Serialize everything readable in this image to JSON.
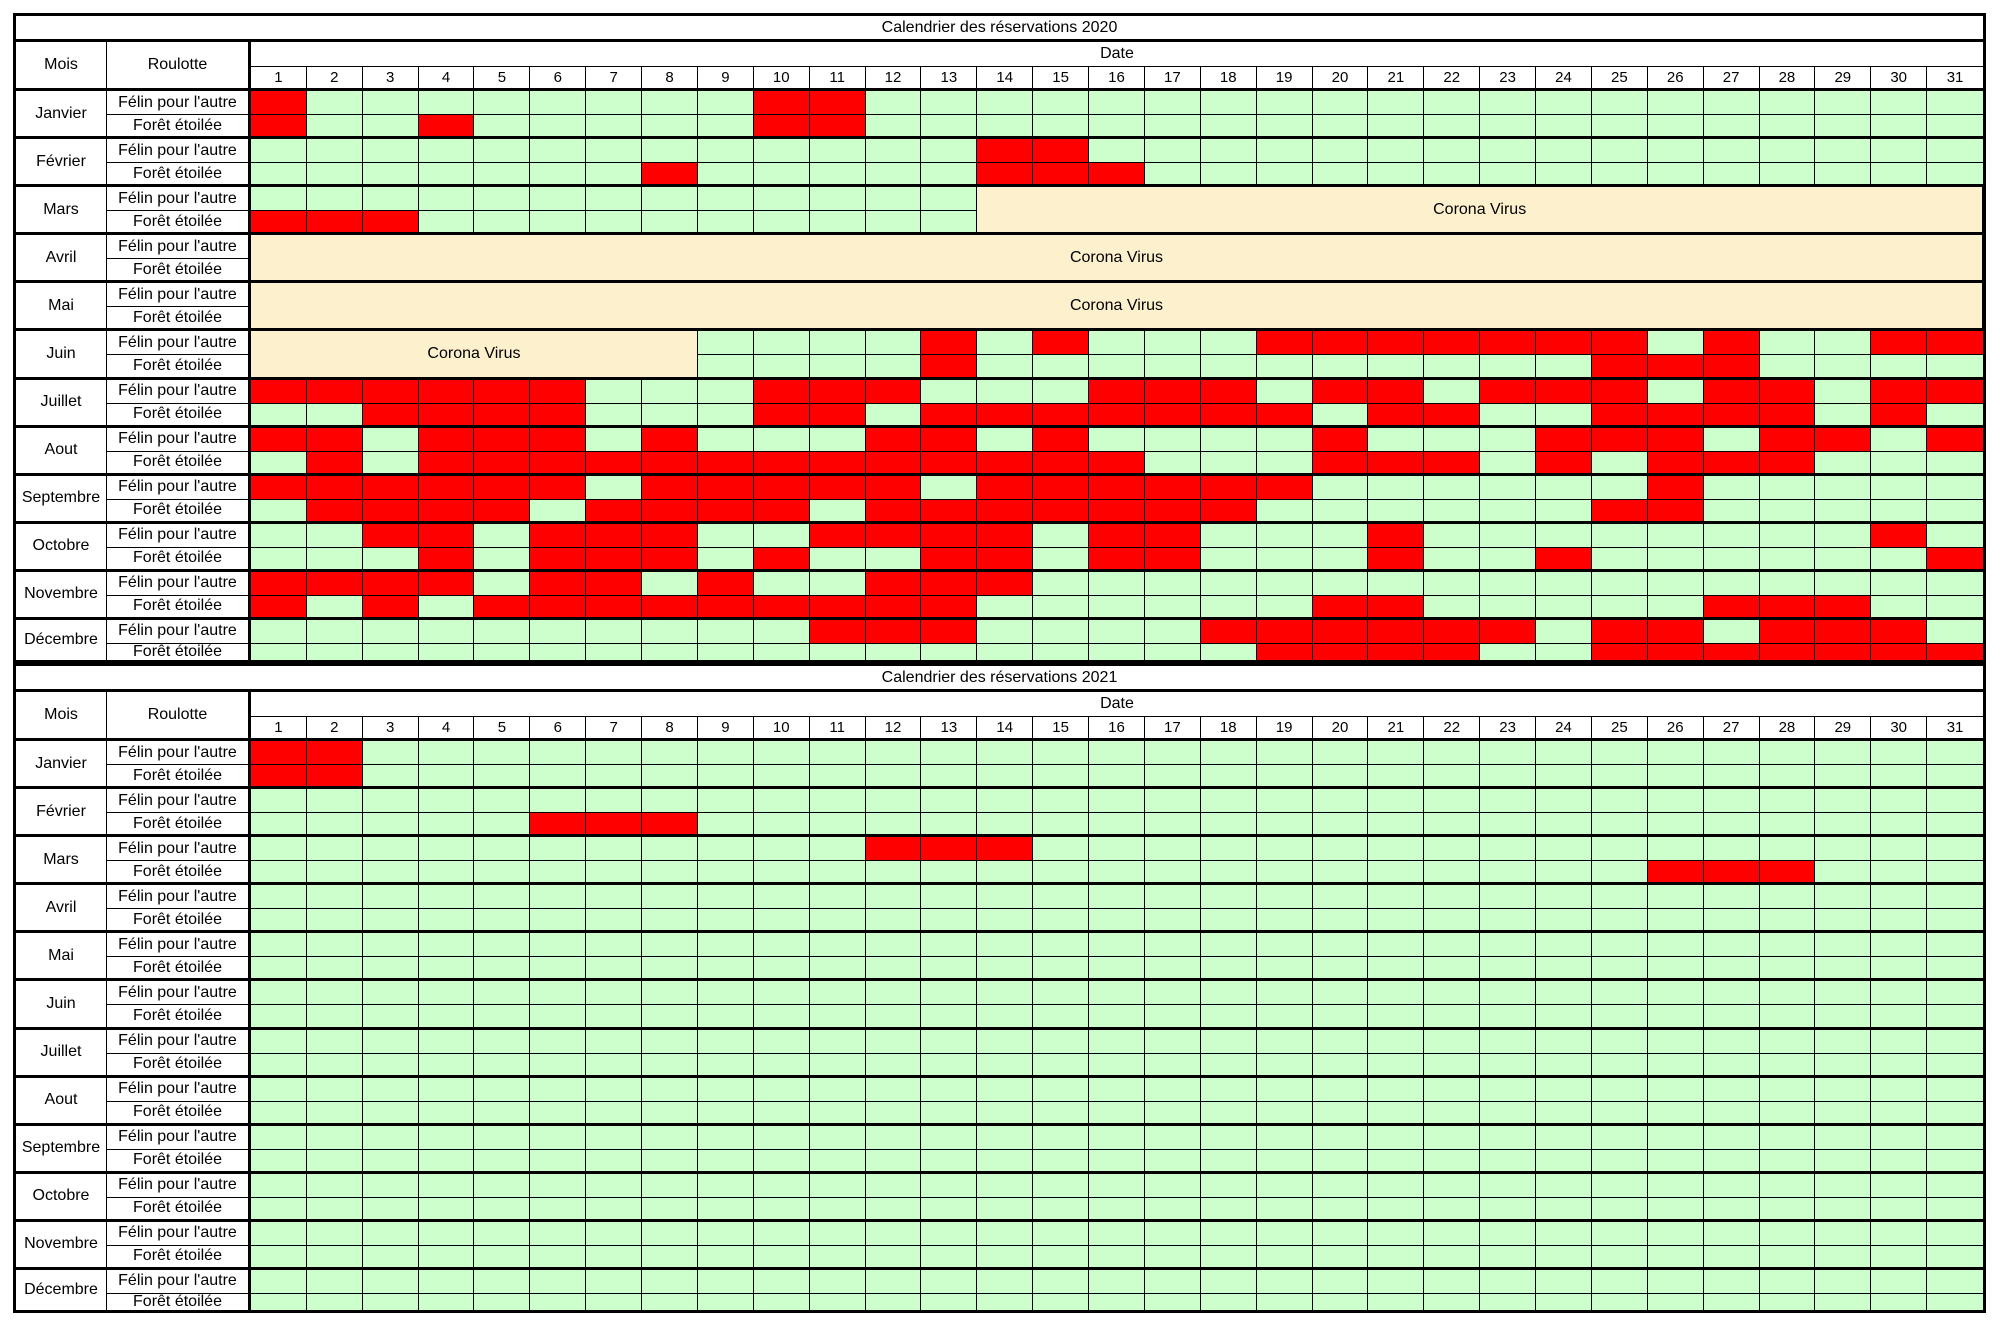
{
  "calendars": [
    {
      "title": "Calendrier des réservations 2020",
      "headers": {
        "mois": "Mois",
        "roulotte": "Roulotte",
        "date": "Date"
      },
      "days": [
        "1",
        "2",
        "3",
        "4",
        "5",
        "6",
        "7",
        "8",
        "9",
        "10",
        "11",
        "12",
        "13",
        "14",
        "15",
        "16",
        "17",
        "18",
        "19",
        "20",
        "21",
        "22",
        "23",
        "24",
        "25",
        "26",
        "27",
        "28",
        "29",
        "30",
        "31"
      ],
      "months": [
        "Janvier",
        "Février",
        "Mars",
        "Avril",
        "Mai",
        "Juin",
        "Juillet",
        "Aout",
        "Septembre",
        "Octobre",
        "Novembre",
        "Décembre"
      ],
      "roulottes": [
        "Félin pour l'autre",
        "Forêt étoilée"
      ],
      "closures": [
        {
          "month": 3,
          "rows": [
            1,
            2
          ],
          "from": 14,
          "to": 31,
          "label": "Corona Virus"
        },
        {
          "month": 4,
          "rows": [
            1,
            2
          ],
          "from": 1,
          "to": 31,
          "label": "Corona Virus"
        },
        {
          "month": 5,
          "rows": [
            1,
            2
          ],
          "from": 1,
          "to": 31,
          "label": "Corona Virus"
        },
        {
          "month": 6,
          "rows": [
            1,
            2
          ],
          "from": 1,
          "to": 8,
          "label": "Corona Virus"
        }
      ],
      "bookings": [
        {
          "month": 1,
          "row": 1,
          "from": 1,
          "to": 1
        },
        {
          "month": 1,
          "row": 1,
          "from": 10,
          "to": 11
        },
        {
          "month": 1,
          "row": 2,
          "from": 1,
          "to": 1
        },
        {
          "month": 1,
          "row": 2,
          "from": 4,
          "to": 4
        },
        {
          "month": 1,
          "row": 2,
          "from": 10,
          "to": 11
        },
        {
          "month": 2,
          "row": 1,
          "from": 14,
          "to": 15
        },
        {
          "month": 2,
          "row": 2,
          "from": 8,
          "to": 8
        },
        {
          "month": 2,
          "row": 2,
          "from": 14,
          "to": 16
        },
        {
          "month": 3,
          "row": 2,
          "from": 1,
          "to": 3
        },
        {
          "month": 6,
          "row": 1,
          "from": 13,
          "to": 13
        },
        {
          "month": 6,
          "row": 1,
          "from": 15,
          "to": 15
        },
        {
          "month": 6,
          "row": 1,
          "from": 19,
          "to": 25
        },
        {
          "month": 6,
          "row": 1,
          "from": 27,
          "to": 27
        },
        {
          "month": 6,
          "row": 1,
          "from": 30,
          "to": 31
        },
        {
          "month": 6,
          "row": 2,
          "from": 13,
          "to": 13
        },
        {
          "month": 6,
          "row": 2,
          "from": 25,
          "to": 27
        },
        {
          "month": 7,
          "row": 1,
          "from": 1,
          "to": 6
        },
        {
          "month": 7,
          "row": 1,
          "from": 10,
          "to": 12
        },
        {
          "month": 7,
          "row": 1,
          "from": 16,
          "to": 18
        },
        {
          "month": 7,
          "row": 1,
          "from": 20,
          "to": 21
        },
        {
          "month": 7,
          "row": 1,
          "from": 23,
          "to": 25
        },
        {
          "month": 7,
          "row": 1,
          "from": 27,
          "to": 28
        },
        {
          "month": 7,
          "row": 1,
          "from": 30,
          "to": 31
        },
        {
          "month": 7,
          "row": 2,
          "from": 3,
          "to": 6
        },
        {
          "month": 7,
          "row": 2,
          "from": 10,
          "to": 11
        },
        {
          "month": 7,
          "row": 2,
          "from": 13,
          "to": 19
        },
        {
          "month": 7,
          "row": 2,
          "from": 21,
          "to": 22
        },
        {
          "month": 7,
          "row": 2,
          "from": 25,
          "to": 28
        },
        {
          "month": 7,
          "row": 2,
          "from": 30,
          "to": 30
        },
        {
          "month": 8,
          "row": 1,
          "from": 1,
          "to": 2
        },
        {
          "month": 8,
          "row": 1,
          "from": 4,
          "to": 6
        },
        {
          "month": 8,
          "row": 1,
          "from": 8,
          "to": 8
        },
        {
          "month": 8,
          "row": 1,
          "from": 12,
          "to": 13
        },
        {
          "month": 8,
          "row": 1,
          "from": 15,
          "to": 15
        },
        {
          "month": 8,
          "row": 1,
          "from": 20,
          "to": 20
        },
        {
          "month": 8,
          "row": 1,
          "from": 24,
          "to": 26
        },
        {
          "month": 8,
          "row": 1,
          "from": 28,
          "to": 29
        },
        {
          "month": 8,
          "row": 1,
          "from": 31,
          "to": 31
        },
        {
          "month": 8,
          "row": 2,
          "from": 2,
          "to": 2
        },
        {
          "month": 8,
          "row": 2,
          "from": 4,
          "to": 16
        },
        {
          "month": 8,
          "row": 2,
          "from": 20,
          "to": 22
        },
        {
          "month": 8,
          "row": 2,
          "from": 24,
          "to": 24
        },
        {
          "month": 8,
          "row": 2,
          "from": 26,
          "to": 28
        },
        {
          "month": 9,
          "row": 1,
          "from": 1,
          "to": 6
        },
        {
          "month": 9,
          "row": 1,
          "from": 8,
          "to": 12
        },
        {
          "month": 9,
          "row": 1,
          "from": 14,
          "to": 19
        },
        {
          "month": 9,
          "row": 1,
          "from": 26,
          "to": 26
        },
        {
          "month": 9,
          "row": 2,
          "from": 2,
          "to": 5
        },
        {
          "month": 9,
          "row": 2,
          "from": 7,
          "to": 10
        },
        {
          "month": 9,
          "row": 2,
          "from": 12,
          "to": 18
        },
        {
          "month": 9,
          "row": 2,
          "from": 25,
          "to": 26
        },
        {
          "month": 10,
          "row": 1,
          "from": 3,
          "to": 4
        },
        {
          "month": 10,
          "row": 1,
          "from": 6,
          "to": 8
        },
        {
          "month": 10,
          "row": 1,
          "from": 11,
          "to": 14
        },
        {
          "month": 10,
          "row": 1,
          "from": 16,
          "to": 17
        },
        {
          "month": 10,
          "row": 1,
          "from": 21,
          "to": 21
        },
        {
          "month": 10,
          "row": 1,
          "from": 30,
          "to": 30
        },
        {
          "month": 10,
          "row": 2,
          "from": 4,
          "to": 4
        },
        {
          "month": 10,
          "row": 2,
          "from": 6,
          "to": 8
        },
        {
          "month": 10,
          "row": 2,
          "from": 10,
          "to": 10
        },
        {
          "month": 10,
          "row": 2,
          "from": 13,
          "to": 14
        },
        {
          "month": 10,
          "row": 2,
          "from": 16,
          "to": 17
        },
        {
          "month": 10,
          "row": 2,
          "from": 21,
          "to": 21
        },
        {
          "month": 10,
          "row": 2,
          "from": 24,
          "to": 24
        },
        {
          "month": 10,
          "row": 2,
          "from": 31,
          "to": 31
        },
        {
          "month": 11,
          "row": 1,
          "from": 1,
          "to": 4
        },
        {
          "month": 11,
          "row": 1,
          "from": 6,
          "to": 7
        },
        {
          "month": 11,
          "row": 1,
          "from": 9,
          "to": 9
        },
        {
          "month": 11,
          "row": 1,
          "from": 12,
          "to": 14
        },
        {
          "month": 11,
          "row": 2,
          "from": 1,
          "to": 1
        },
        {
          "month": 11,
          "row": 2,
          "from": 3,
          "to": 3
        },
        {
          "month": 11,
          "row": 2,
          "from": 5,
          "to": 13
        },
        {
          "month": 11,
          "row": 2,
          "from": 20,
          "to": 21
        },
        {
          "month": 11,
          "row": 2,
          "from": 27,
          "to": 29
        },
        {
          "month": 12,
          "row": 1,
          "from": 11,
          "to": 13
        },
        {
          "month": 12,
          "row": 1,
          "from": 18,
          "to": 23
        },
        {
          "month": 12,
          "row": 1,
          "from": 25,
          "to": 26
        },
        {
          "month": 12,
          "row": 1,
          "from": 28,
          "to": 30
        },
        {
          "month": 12,
          "row": 2,
          "from": 19,
          "to": 22
        },
        {
          "month": 12,
          "row": 2,
          "from": 25,
          "to": 31
        }
      ]
    },
    {
      "title": "Calendrier des réservations 2021",
      "headers": {
        "mois": "Mois",
        "roulotte": "Roulotte",
        "date": "Date"
      },
      "days": [
        "1",
        "2",
        "3",
        "4",
        "5",
        "6",
        "7",
        "8",
        "9",
        "10",
        "11",
        "12",
        "13",
        "14",
        "15",
        "16",
        "17",
        "18",
        "19",
        "20",
        "21",
        "22",
        "23",
        "24",
        "25",
        "26",
        "27",
        "28",
        "29",
        "30",
        "31"
      ],
      "months": [
        "Janvier",
        "Février",
        "Mars",
        "Avril",
        "Mai",
        "Juin",
        "Juillet",
        "Aout",
        "Septembre",
        "Octobre",
        "Novembre",
        "Décembre"
      ],
      "roulottes": [
        "Félin pour l'autre",
        "Forêt étoilée"
      ],
      "closures": [],
      "bookings": [
        {
          "month": 1,
          "row": 1,
          "from": 1,
          "to": 2
        },
        {
          "month": 1,
          "row": 2,
          "from": 1,
          "to": 2
        },
        {
          "month": 2,
          "row": 2,
          "from": 6,
          "to": 8
        },
        {
          "month": 3,
          "row": 1,
          "from": 12,
          "to": 14
        },
        {
          "month": 3,
          "row": 2,
          "from": 26,
          "to": 28
        }
      ]
    }
  ],
  "colors": {
    "booked": "#ff0000",
    "free": "#ccffcc",
    "closed": "#fdf1cd",
    "border": "#000000"
  }
}
